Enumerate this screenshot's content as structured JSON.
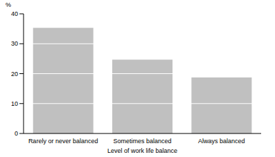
{
  "chart_data": {
    "type": "bar",
    "ylabel": "%",
    "xlabel": "Level of work life balance",
    "categories": [
      "Rarely or never balanced",
      "Sometimes balanced",
      "Always balanced"
    ],
    "values": [
      35.3,
      24.7,
      18.7
    ],
    "color": "#c0c0c0",
    "ylim": [
      0,
      40
    ],
    "yticks": [
      0,
      10,
      20,
      30,
      40
    ],
    "grid": true
  }
}
